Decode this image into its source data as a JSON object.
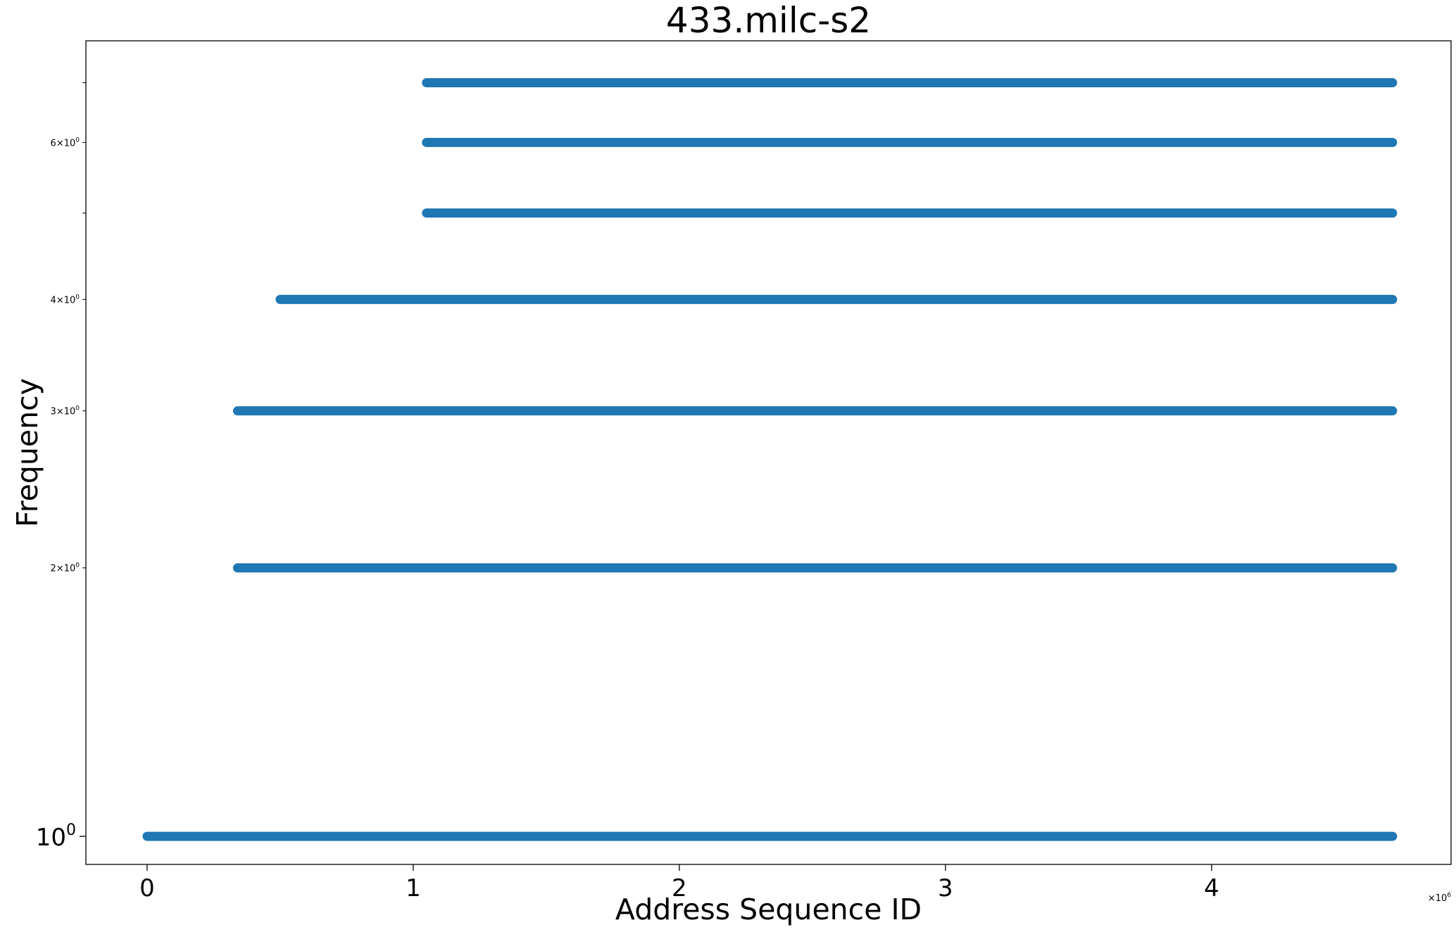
{
  "chart_data": {
    "type": "scatter",
    "title": "433.milc-s2",
    "xlabel": "Address Sequence ID",
    "ylabel": "Frequency",
    "x_scale": "linear",
    "y_scale": "log",
    "x_offset_label": "×10^6",
    "xlim": [
      -230000,
      4900000
    ],
    "ylim": [
      0.93,
      7.8
    ],
    "x_ticks": [
      {
        "value": 0,
        "label": "0"
      },
      {
        "value": 1000000,
        "label": "1"
      },
      {
        "value": 2000000,
        "label": "2"
      },
      {
        "value": 3000000,
        "label": "3"
      },
      {
        "value": 4000000,
        "label": "4"
      }
    ],
    "y_major_ticks": [
      {
        "value": 1,
        "base": "10",
        "exp": "0"
      }
    ],
    "y_minor_ticks": [
      {
        "value": 2,
        "mant": "2",
        "base": "10",
        "exp": "0"
      },
      {
        "value": 3,
        "mant": "3",
        "base": "10",
        "exp": "0"
      },
      {
        "value": 4,
        "mant": "4",
        "base": "10",
        "exp": "0"
      },
      {
        "value": 5,
        "mant": "",
        "base": "",
        "exp": ""
      },
      {
        "value": 6,
        "mant": "6",
        "base": "10",
        "exp": "0"
      },
      {
        "value": 7,
        "mant": "",
        "base": "",
        "exp": ""
      }
    ],
    "grid": false,
    "legend": "none",
    "marker_color": "#1f77b4",
    "series_note": "points form dense horizontal bands at integer frequencies",
    "bands": [
      {
        "y": 1,
        "x_start": 0,
        "x_end": 4680000
      },
      {
        "y": 2,
        "x_start": 340000,
        "x_end": 4680000
      },
      {
        "y": 3,
        "x_start": 340000,
        "x_end": 4680000
      },
      {
        "y": 4,
        "x_start": 500000,
        "x_end": 4680000
      },
      {
        "y": 5,
        "x_start": 1050000,
        "x_end": 4680000
      },
      {
        "y": 6,
        "x_start": 1050000,
        "x_end": 4680000
      },
      {
        "y": 7,
        "x_start": 1050000,
        "x_end": 4680000
      }
    ]
  }
}
